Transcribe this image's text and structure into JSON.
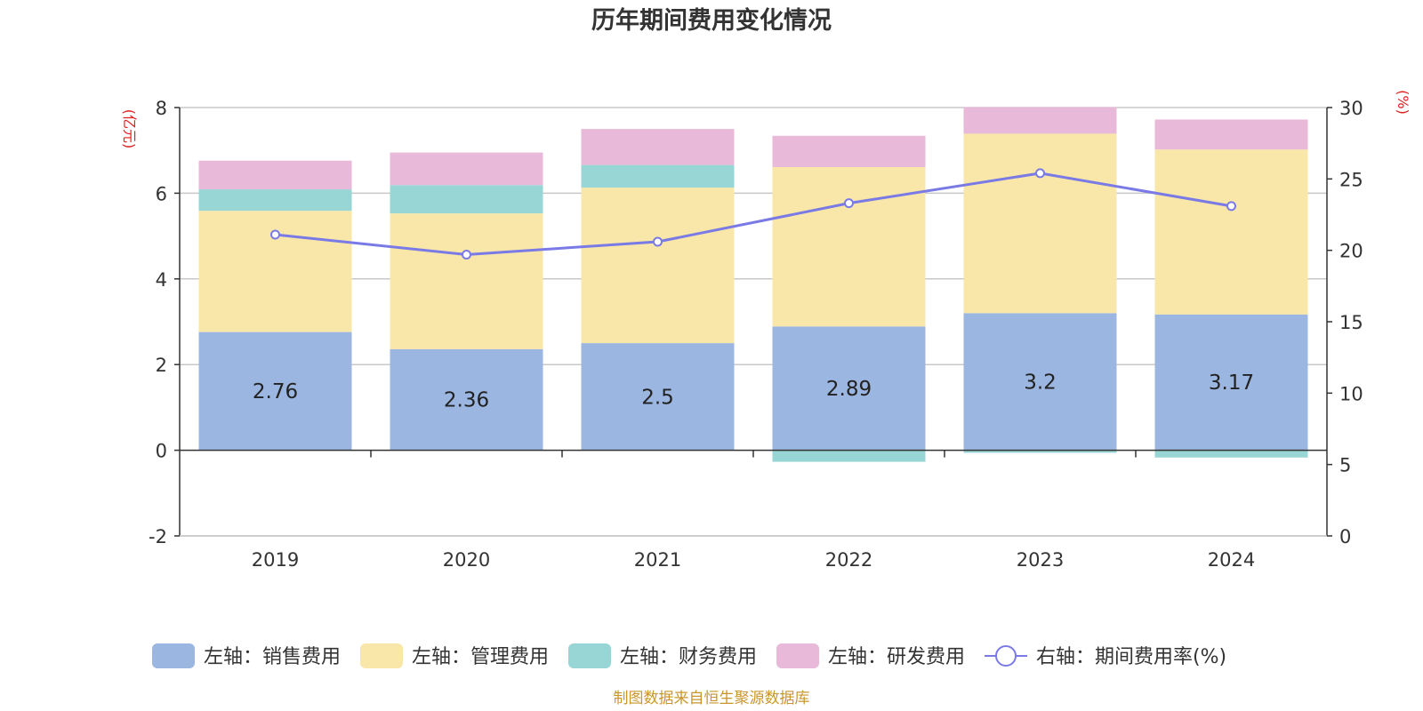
{
  "chart_data": {
    "type": "bar",
    "title": "历年期间费用变化情况",
    "categories": [
      "2019",
      "2020",
      "2021",
      "2022",
      "2023",
      "2024"
    ],
    "left_axis": {
      "unit": "(亿元)",
      "ylim": [
        -2,
        8
      ],
      "ticks": [
        -2,
        0,
        2,
        4,
        6,
        8
      ]
    },
    "right_axis": {
      "unit": "(%)",
      "ylim": [
        0,
        30
      ],
      "ticks": [
        0,
        5,
        10,
        15,
        20,
        25,
        30
      ]
    },
    "series": [
      {
        "name": "左轴：销售费用",
        "kind": "bar",
        "stack": "s",
        "color": "#9bb6e0",
        "values": [
          2.76,
          2.36,
          2.5,
          2.89,
          3.2,
          3.17
        ],
        "show_labels": true
      },
      {
        "name": "左轴：管理费用",
        "kind": "bar",
        "stack": "s",
        "color": "#f8e7a8",
        "values": [
          2.83,
          3.17,
          3.63,
          3.72,
          4.19,
          3.85
        ]
      },
      {
        "name": "左轴：财务费用",
        "kind": "bar",
        "stack": "s",
        "color": "#98d5d5",
        "values": [
          0.5,
          0.66,
          0.53,
          -0.27,
          -0.06,
          -0.17
        ]
      },
      {
        "name": "左轴：研发费用",
        "kind": "bar",
        "stack": "s",
        "color": "#e8b9d9",
        "values": [
          0.67,
          0.76,
          0.84,
          0.73,
          0.62,
          0.7
        ]
      },
      {
        "name": "右轴：期间费用率(%)",
        "kind": "line",
        "axis": "right",
        "color": "#7a7ae6",
        "values": [
          21.1,
          19.7,
          20.6,
          23.3,
          25.4,
          23.1
        ]
      }
    ],
    "legend_position": "bottom",
    "grid": true,
    "source_note": "制图数据来自恒生聚源数据库"
  }
}
